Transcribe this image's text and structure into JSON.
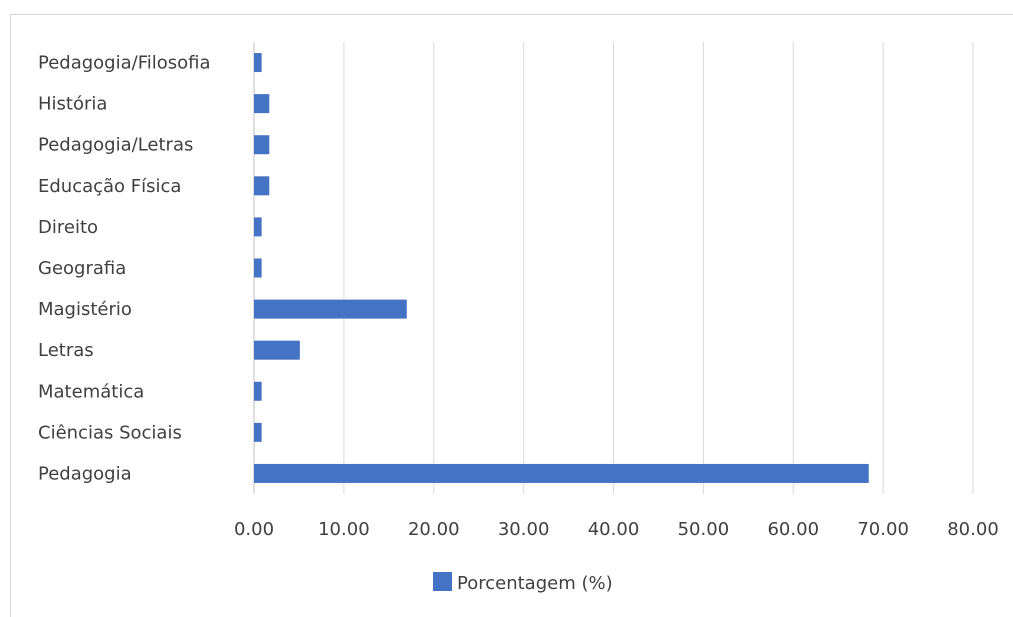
{
  "chart_data": {
    "type": "bar",
    "orientation": "horizontal",
    "categories": [
      "Pedagogia/Filosofia",
      "História",
      "Pedagogia/Letras",
      "Educação Física",
      "Direito",
      "Geografia",
      "Magistério",
      "Letras",
      "Matemática",
      "Ciências Sociais",
      "Pedagogia"
    ],
    "series": [
      {
        "name": "Porcentagem (%)",
        "values": [
          0.85,
          1.7,
          1.7,
          1.7,
          0.85,
          0.85,
          17.0,
          5.1,
          0.85,
          0.85,
          68.4
        ],
        "color": "#4472c4"
      }
    ],
    "xlim": [
      0,
      80
    ],
    "xticks": [
      "0.00",
      "10.00",
      "20.00",
      "30.00",
      "40.00",
      "50.00",
      "60.00",
      "70.00",
      "80.00"
    ],
    "grid": "vertical",
    "legend": "bottom-center"
  }
}
